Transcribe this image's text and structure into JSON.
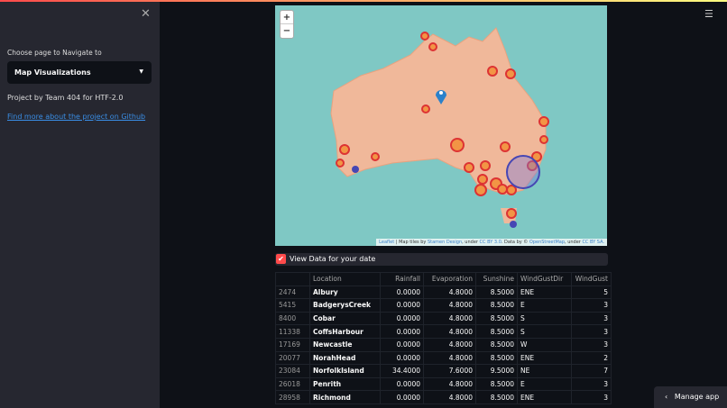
{
  "sidebar": {
    "close": "✕",
    "nav_label": "Choose page to Navigate to",
    "selected_page": "Map Visualizations",
    "project_text": "Project by Team 404 for HTF-2.0",
    "github_link": "Find more about the project on Github"
  },
  "menu_icon": "☰",
  "map": {
    "zoom_in": "+",
    "zoom_out": "−",
    "attribution": {
      "leaflet": "Leaflet",
      "tiles_by": " | Map tiles by ",
      "stamen": "Stamen Design",
      "under1": ", under ",
      "cc3": "CC BY 3.0",
      "data_by": ". Data by © ",
      "osm": "OpenStreetMap",
      "under2": ", under ",
      "ccsa": "CC BY SA."
    }
  },
  "checkbox": {
    "label": "View Data for your date",
    "checked": true
  },
  "table": {
    "columns": [
      "",
      "Location",
      "Rainfall",
      "Evaporation",
      "Sunshine",
      "WindGustDir",
      "WindGust"
    ],
    "rows": [
      [
        "2474",
        "Albury",
        "0.0000",
        "4.8000",
        "8.5000",
        "ENE",
        "5"
      ],
      [
        "5415",
        "BadgerysCreek",
        "0.0000",
        "4.8000",
        "8.5000",
        "E",
        "3"
      ],
      [
        "8400",
        "Cobar",
        "0.0000",
        "4.8000",
        "8.5000",
        "S",
        "3"
      ],
      [
        "11338",
        "CoffsHarbour",
        "0.0000",
        "4.8000",
        "8.5000",
        "S",
        "3"
      ],
      [
        "17169",
        "Newcastle",
        "0.0000",
        "4.8000",
        "8.5000",
        "W",
        "3"
      ],
      [
        "20077",
        "NorahHead",
        "0.0000",
        "4.8000",
        "8.5000",
        "ENE",
        "2"
      ],
      [
        "23084",
        "NorfolkIsland",
        "34.4000",
        "7.6000",
        "9.5000",
        "NE",
        "7"
      ],
      [
        "26018",
        "Penrith",
        "0.0000",
        "4.8000",
        "8.5000",
        "E",
        "3"
      ],
      [
        "28958",
        "Richmond",
        "0.0000",
        "4.8000",
        "8.5000",
        "ENE",
        "3"
      ]
    ]
  },
  "manage_app": "Manage app"
}
